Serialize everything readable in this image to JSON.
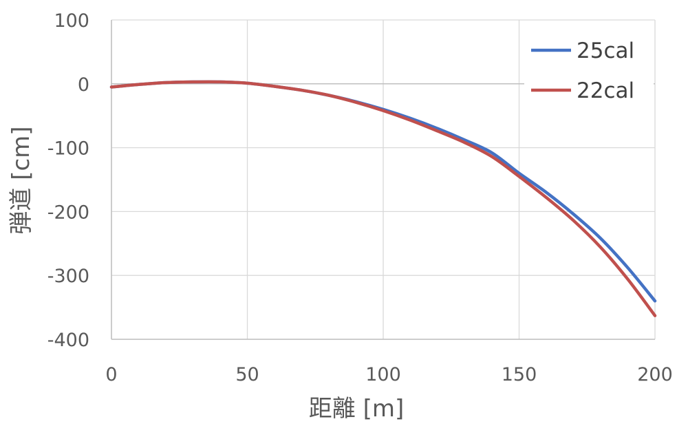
{
  "chart_data": {
    "type": "line",
    "xlabel": "距離 [m]",
    "ylabel": "弾道 [cm]",
    "xlim": [
      0,
      200
    ],
    "ylim": [
      -400,
      100
    ],
    "x_ticks": [
      "0",
      "50",
      "100",
      "150",
      "200"
    ],
    "y_ticks": [
      "100",
      "0",
      "-100",
      "-200",
      "-300",
      "-400"
    ],
    "grid": true,
    "legend_position": "top-right",
    "x": [
      0,
      10,
      20,
      30,
      40,
      50,
      60,
      70,
      80,
      90,
      100,
      110,
      120,
      130,
      140,
      150,
      160,
      170,
      180,
      190,
      200
    ],
    "series": [
      {
        "name": "25cal",
        "color": "#4472C4",
        "values": [
          -5,
          -1,
          2,
          3,
          3,
          1,
          -4,
          -10,
          -18,
          -28,
          -40,
          -54,
          -70,
          -88,
          -108,
          -140,
          -170,
          -204,
          -242,
          -288,
          -340
        ]
      },
      {
        "name": "22cal",
        "color": "#C0504D",
        "values": [
          -5,
          -1,
          2,
          3,
          3,
          1,
          -4,
          -10,
          -18,
          -29,
          -42,
          -57,
          -74,
          -92,
          -114,
          -145,
          -178,
          -214,
          -256,
          -306,
          -363
        ]
      }
    ]
  }
}
